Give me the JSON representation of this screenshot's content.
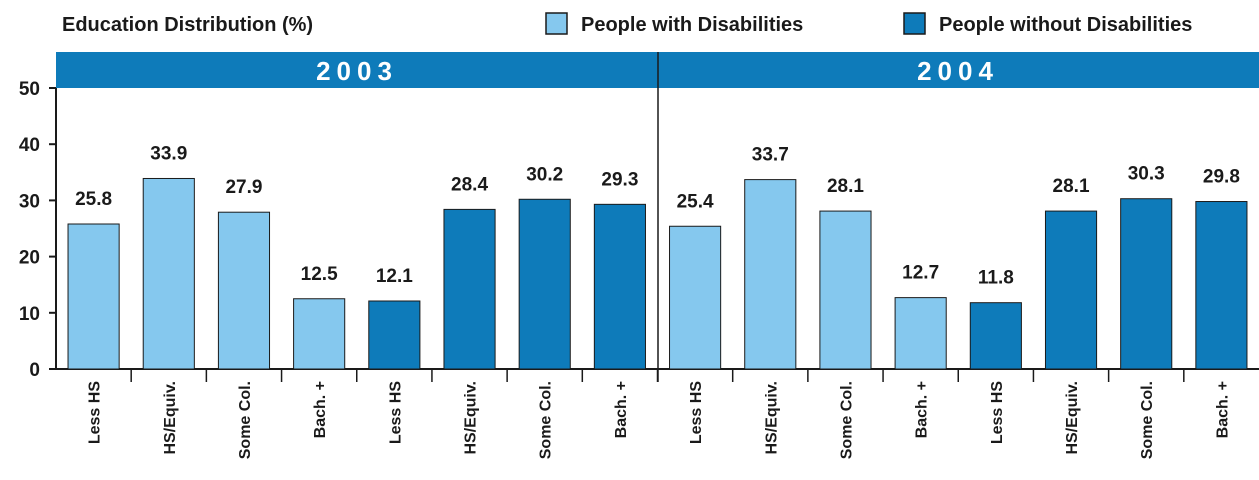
{
  "chart_data": {
    "type": "bar",
    "title": "Education Distribution (%)",
    "ylim": [
      0,
      50
    ],
    "yticks": [
      0,
      10,
      20,
      30,
      40,
      50
    ],
    "grid": false,
    "legend_position": "top-right",
    "colors": {
      "with": "#85c8ee",
      "without": "#0e7bba",
      "panel_header": "#0e7bba",
      "axis": "#1a1a1a"
    },
    "legend": [
      {
        "label": "People with Disabilities",
        "color": "#85c8ee"
      },
      {
        "label": "People without Disabilities",
        "color": "#0e7bba"
      }
    ],
    "panels": [
      {
        "label": "2003",
        "categories": [
          "Less HS",
          "HS/Equiv.",
          "Some Col.",
          "Bach. +",
          "Less HS",
          "HS/Equiv.",
          "Some Col.",
          "Bach. +"
        ],
        "series": [
          {
            "name": "People with Disabilities",
            "values": [
              25.8,
              33.9,
              27.9,
              12.5
            ]
          },
          {
            "name": "People without Disabilities",
            "values": [
              12.1,
              28.4,
              30.2,
              29.3
            ]
          }
        ]
      },
      {
        "label": "2004",
        "categories": [
          "Less HS",
          "HS/Equiv.",
          "Some Col.",
          "Bach. +",
          "Less HS",
          "HS/Equiv.",
          "Some Col.",
          "Bach. +"
        ],
        "series": [
          {
            "name": "People with Disabilities",
            "values": [
              25.4,
              33.7,
              28.1,
              12.7
            ]
          },
          {
            "name": "People without Disabilities",
            "values": [
              11.8,
              28.1,
              30.3,
              29.8
            ]
          }
        ]
      }
    ]
  }
}
